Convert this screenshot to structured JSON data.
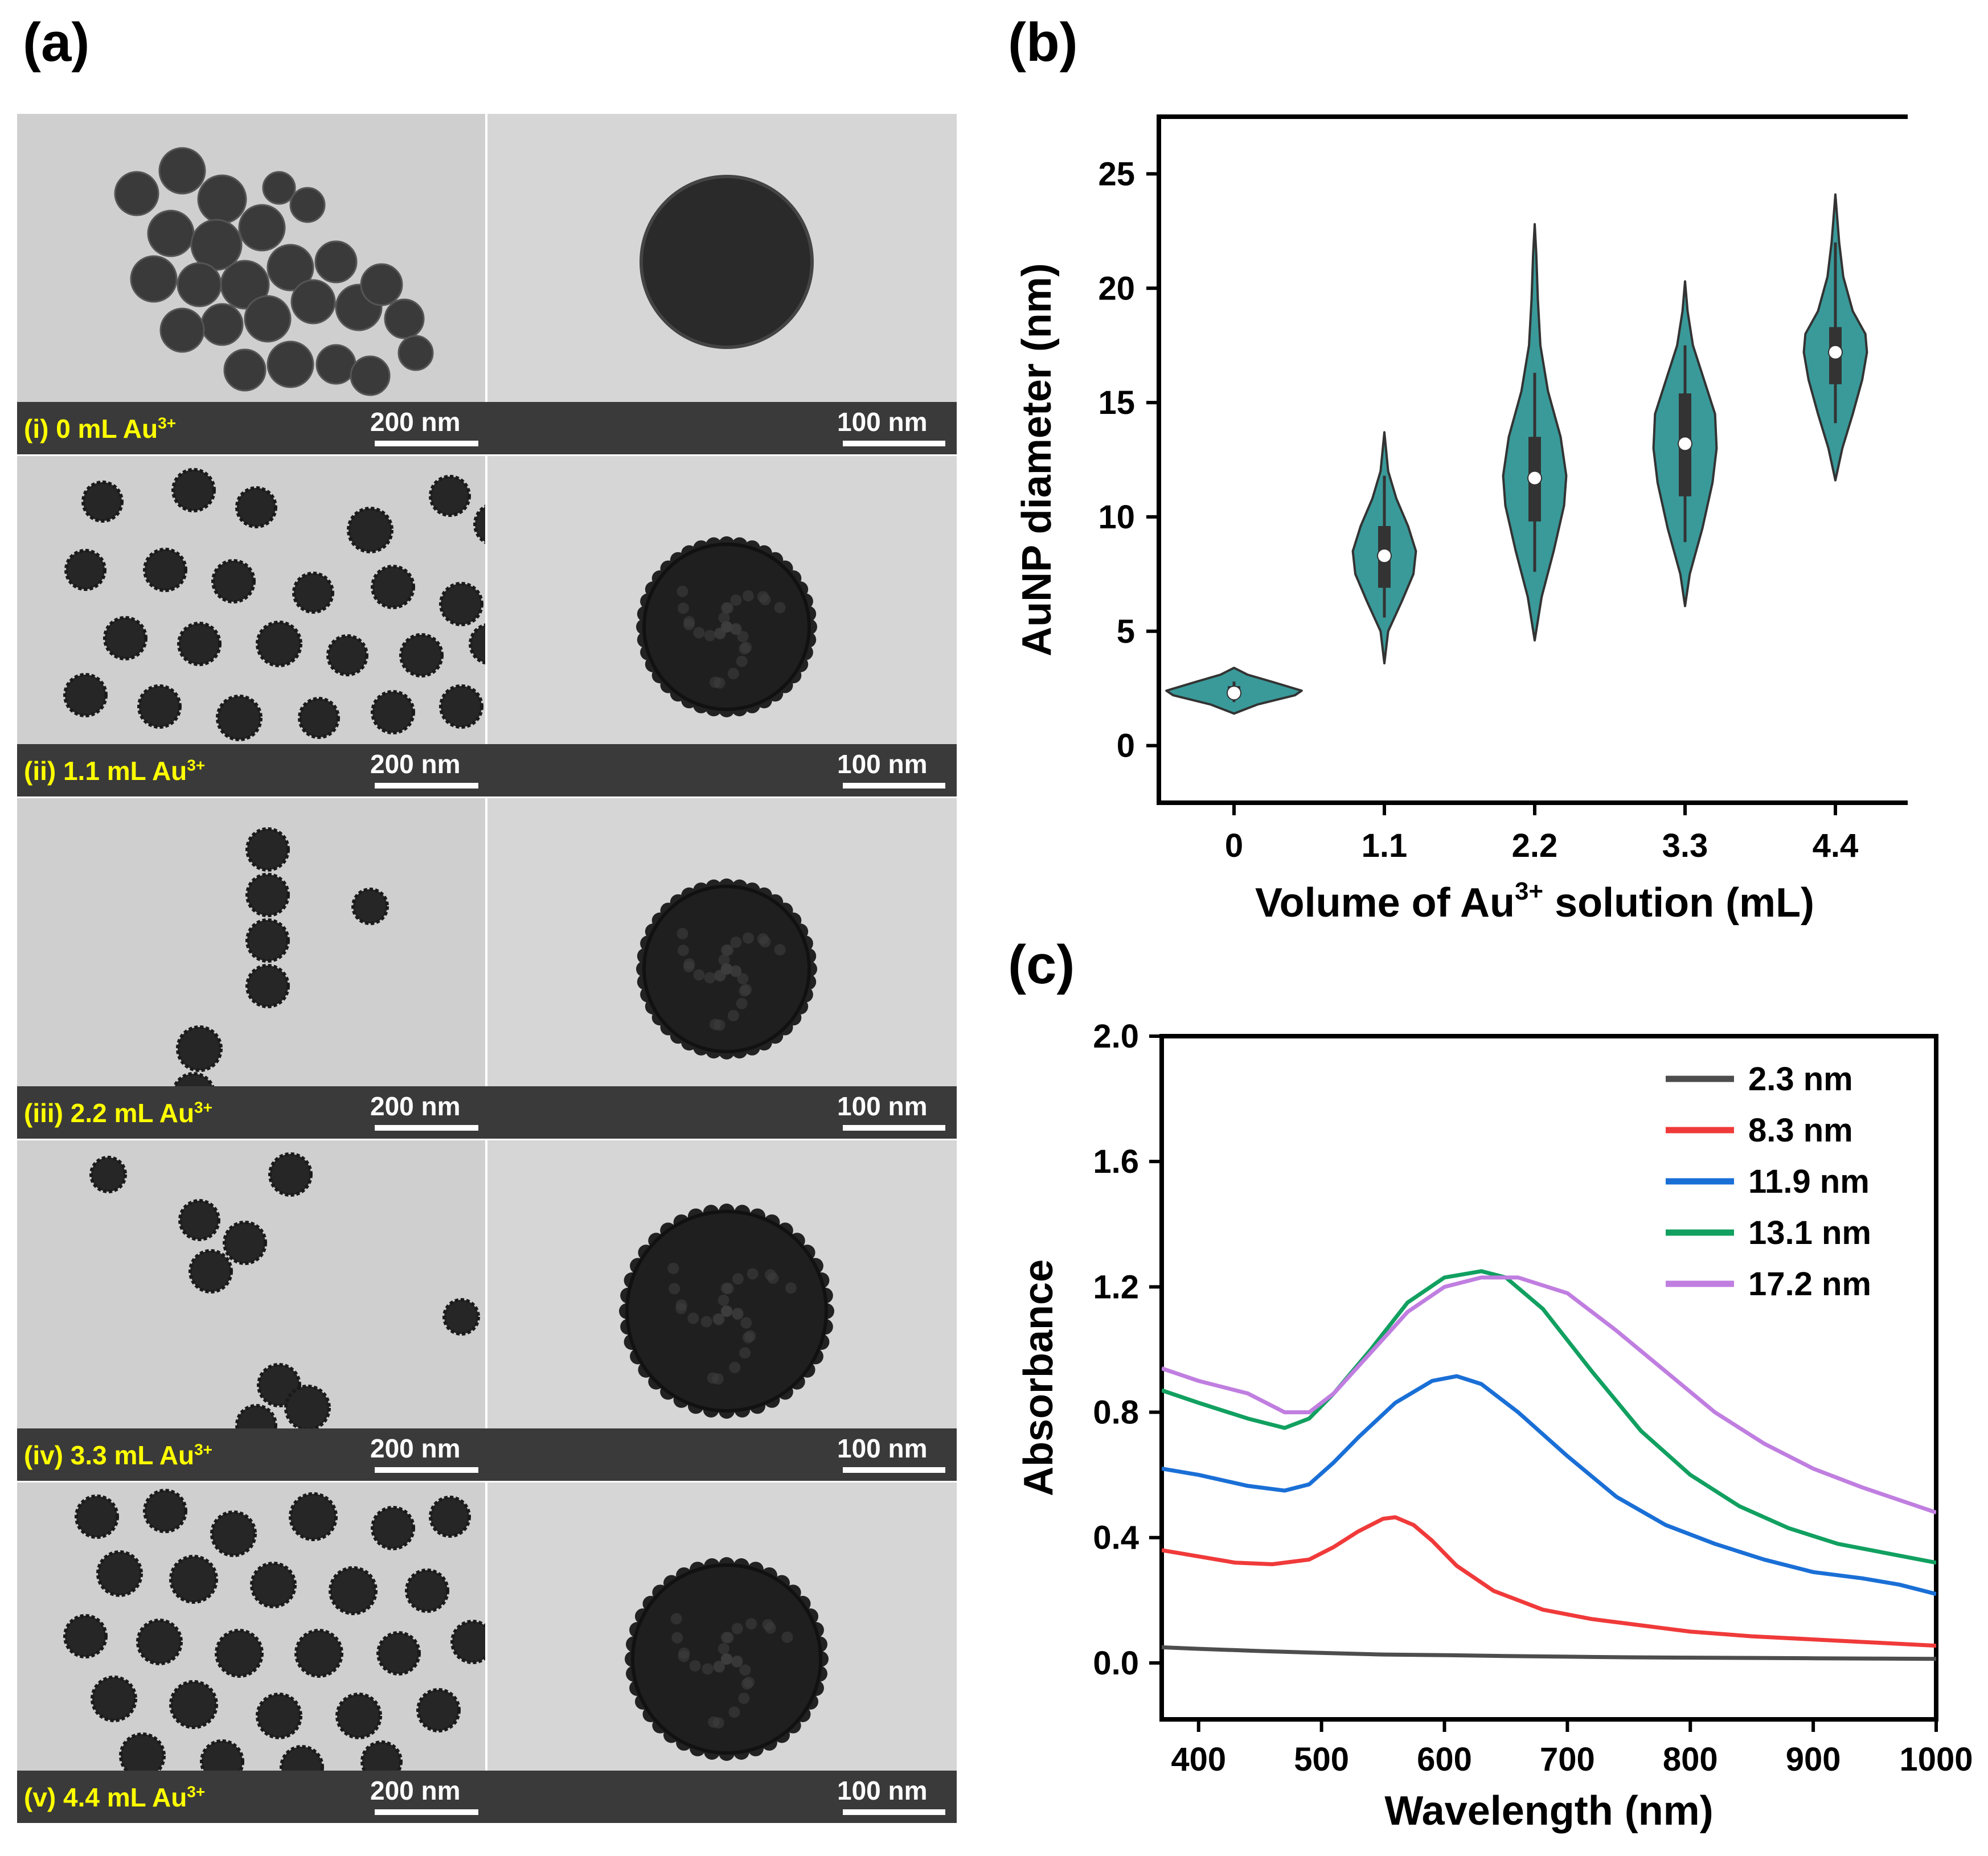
{
  "panels": {
    "a": "(a)",
    "b": "(b)",
    "c": "(c)"
  },
  "tem_rows": [
    {
      "label": "(i) 0 mL Au",
      "sup": "3+",
      "scale_left": "200 nm",
      "scale_right": "100 nm"
    },
    {
      "label": "(ii) 1.1 mL Au",
      "sup": "3+",
      "scale_left": "200 nm",
      "scale_right": "100 nm"
    },
    {
      "label": "(iii) 2.2 mL Au",
      "sup": "3+",
      "scale_left": "200 nm",
      "scale_right": "100 nm"
    },
    {
      "label": "(iv) 3.3 mL Au",
      "sup": "3+",
      "scale_left": "200 nm",
      "scale_right": "100 nm"
    },
    {
      "label": "(v) 4.4 mL Au",
      "sup": "3+",
      "scale_left": "200 nm",
      "scale_right": "100 nm"
    }
  ],
  "colors": {
    "violin": "#3a9a9a",
    "series": [
      "#4d4d4d",
      "#f03a3a",
      "#1a6fd6",
      "#11a060",
      "#c07ee0"
    ]
  },
  "chart_data": [
    {
      "type": "violin",
      "title": "",
      "xlabel": "Volume of Au",
      "xlabel_sup": "3+",
      "xlabel_suffix": " solution (mL)",
      "ylabel": "AuNP diameter (nm)",
      "categories": [
        "0",
        "1.1",
        "2.2",
        "3.3",
        "4.4"
      ],
      "yticks": [
        "0",
        "5",
        "10",
        "15",
        "20",
        "25"
      ],
      "ylim": [
        -2.5,
        27.5
      ],
      "distributions": [
        {
          "min": 1.4,
          "max": 3.4,
          "q1": 2.1,
          "median": 2.3,
          "q3": 2.6,
          "wmin": 1.9,
          "wmax": 2.8,
          "profile": [
            [
              1.4,
              0.0
            ],
            [
              1.8,
              0.35
            ],
            [
              2.2,
              0.9
            ],
            [
              2.4,
              1.0
            ],
            [
              2.8,
              0.55
            ],
            [
              3.1,
              0.2
            ],
            [
              3.4,
              0.0
            ]
          ],
          "width_scale": 0.9
        },
        {
          "min": 3.6,
          "max": 13.7,
          "q1": 6.9,
          "median": 8.3,
          "q3": 9.6,
          "wmin": 5.6,
          "wmax": 11.8,
          "profile": [
            [
              3.6,
              0.0
            ],
            [
              5.0,
              0.12
            ],
            [
              6.3,
              0.55
            ],
            [
              7.5,
              0.92
            ],
            [
              8.5,
              1.0
            ],
            [
              9.6,
              0.75
            ],
            [
              10.8,
              0.38
            ],
            [
              12.0,
              0.12
            ],
            [
              13.7,
              0.0
            ]
          ],
          "width_scale": 0.42
        },
        {
          "min": 4.6,
          "max": 22.8,
          "q1": 9.8,
          "median": 11.7,
          "q3": 13.5,
          "wmin": 7.6,
          "wmax": 16.3,
          "profile": [
            [
              4.6,
              0.0
            ],
            [
              6.5,
              0.22
            ],
            [
              8.5,
              0.6
            ],
            [
              10.5,
              0.93
            ],
            [
              11.8,
              1.0
            ],
            [
              13.5,
              0.82
            ],
            [
              15.5,
              0.42
            ],
            [
              17.5,
              0.18
            ],
            [
              19.5,
              0.1
            ],
            [
              21.5,
              0.05
            ],
            [
              22.8,
              0.0
            ]
          ],
          "width_scale": 0.42
        },
        {
          "min": 6.1,
          "max": 20.3,
          "q1": 10.9,
          "median": 13.2,
          "q3": 15.4,
          "wmin": 8.9,
          "wmax": 17.5,
          "profile": [
            [
              6.1,
              0.0
            ],
            [
              7.5,
              0.15
            ],
            [
              9.5,
              0.55
            ],
            [
              11.5,
              0.87
            ],
            [
              13.0,
              1.0
            ],
            [
              14.5,
              0.95
            ],
            [
              16.0,
              0.6
            ],
            [
              17.5,
              0.25
            ],
            [
              19.0,
              0.08
            ],
            [
              20.3,
              0.0
            ]
          ],
          "width_scale": 0.42
        },
        {
          "min": 11.6,
          "max": 24.1,
          "q1": 15.8,
          "median": 17.2,
          "q3": 18.3,
          "wmin": 14.1,
          "wmax": 22.0,
          "profile": [
            [
              11.6,
              0.0
            ],
            [
              13.0,
              0.22
            ],
            [
              14.5,
              0.55
            ],
            [
              16.0,
              0.85
            ],
            [
              17.2,
              1.0
            ],
            [
              18.0,
              0.95
            ],
            [
              19.0,
              0.55
            ],
            [
              20.5,
              0.25
            ],
            [
              22.0,
              0.12
            ],
            [
              24.1,
              0.0
            ]
          ],
          "width_scale": 0.42
        }
      ]
    },
    {
      "type": "line",
      "title": "",
      "xlabel": "Wavelength (nm)",
      "ylabel": "Absorbance",
      "xlim": [
        370,
        1000
      ],
      "ylim": [
        -0.18,
        2.0
      ],
      "xticks": [
        "400",
        "500",
        "600",
        "700",
        "800",
        "900",
        "1000"
      ],
      "yticks": [
        "0.0",
        "0.4",
        "0.8",
        "1.2",
        "1.6",
        "2.0"
      ],
      "legend_position": "top-right",
      "series": [
        {
          "name": "2.3 nm",
          "x": [
            370,
            400,
            450,
            500,
            550,
            600,
            650,
            700,
            750,
            800,
            850,
            900,
            950,
            1000
          ],
          "y": [
            0.05,
            0.045,
            0.038,
            0.032,
            0.027,
            0.025,
            0.022,
            0.02,
            0.018,
            0.017,
            0.016,
            0.015,
            0.014,
            0.013
          ]
        },
        {
          "name": "8.3 nm",
          "x": [
            370,
            400,
            430,
            460,
            490,
            510,
            530,
            550,
            560,
            575,
            590,
            610,
            640,
            680,
            720,
            760,
            800,
            850,
            900,
            950,
            1000
          ],
          "y": [
            0.36,
            0.34,
            0.32,
            0.315,
            0.33,
            0.37,
            0.42,
            0.46,
            0.465,
            0.44,
            0.39,
            0.31,
            0.23,
            0.17,
            0.14,
            0.12,
            0.1,
            0.085,
            0.075,
            0.065,
            0.055
          ]
        },
        {
          "name": "11.9 nm",
          "x": [
            370,
            400,
            440,
            470,
            490,
            510,
            530,
            560,
            590,
            610,
            630,
            660,
            700,
            740,
            780,
            820,
            860,
            900,
            940,
            970,
            1000
          ],
          "y": [
            0.62,
            0.6,
            0.565,
            0.55,
            0.57,
            0.64,
            0.72,
            0.83,
            0.9,
            0.915,
            0.89,
            0.8,
            0.66,
            0.53,
            0.44,
            0.38,
            0.33,
            0.29,
            0.27,
            0.25,
            0.22
          ]
        },
        {
          "name": "13.1 nm",
          "x": [
            370,
            400,
            440,
            470,
            490,
            510,
            540,
            570,
            600,
            630,
            650,
            680,
            720,
            760,
            800,
            840,
            880,
            920,
            960,
            1000
          ],
          "y": [
            0.87,
            0.83,
            0.78,
            0.75,
            0.78,
            0.86,
            1.0,
            1.15,
            1.23,
            1.25,
            1.23,
            1.13,
            0.93,
            0.74,
            0.6,
            0.5,
            0.43,
            0.38,
            0.35,
            0.32
          ]
        },
        {
          "name": "17.2 nm",
          "x": [
            370,
            400,
            440,
            470,
            490,
            510,
            540,
            570,
            600,
            630,
            660,
            700,
            740,
            780,
            820,
            860,
            900,
            940,
            970,
            1000
          ],
          "y": [
            0.94,
            0.9,
            0.86,
            0.8,
            0.8,
            0.86,
            0.99,
            1.12,
            1.2,
            1.23,
            1.23,
            1.18,
            1.06,
            0.93,
            0.8,
            0.7,
            0.62,
            0.56,
            0.52,
            0.48
          ]
        }
      ]
    }
  ]
}
